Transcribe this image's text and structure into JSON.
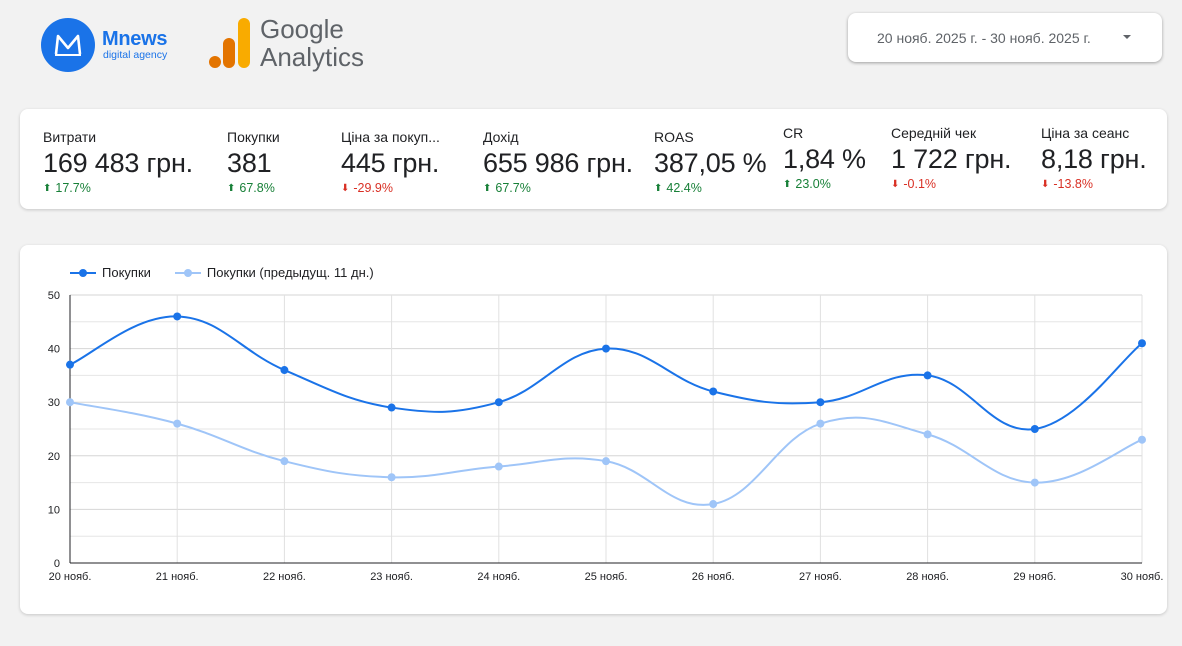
{
  "header": {
    "brand_name": "Mnews",
    "brand_sub": "digital agency",
    "ga_line1": "Google",
    "ga_line2": "Analytics",
    "date_range": "20 нояб. 2025 г. - 30 нояб. 2025 г."
  },
  "kpis": [
    {
      "label": "Витрати",
      "value": "169 483 грн.",
      "delta": "17.7%",
      "dir": "up"
    },
    {
      "label": "Покупки",
      "value": "381",
      "delta": "67.8%",
      "dir": "up"
    },
    {
      "label": "Ціна за покуп...",
      "value": "445 грн.",
      "delta": "-29.9%",
      "dir": "down"
    },
    {
      "label": "Дохід",
      "value": "655 986 грн.",
      "delta": "67.7%",
      "dir": "up"
    },
    {
      "label": "ROAS",
      "value": "387,05 %",
      "delta": "42.4%",
      "dir": "up"
    },
    {
      "label": "CR",
      "value": "1,84 %",
      "delta": "23.0%",
      "dir": "up"
    },
    {
      "label": "Середній чек",
      "value": "1 722 грн.",
      "delta": "-0.1%",
      "dir": "down"
    },
    {
      "label": "Ціна за сеанс",
      "value": "8,18 грн.",
      "delta": "-13.8%",
      "dir": "down"
    }
  ],
  "colors": {
    "accent": "#1a73e8",
    "series1": "#1a73e8",
    "series2": "#9fc5f8",
    "up": "#188038",
    "down": "#d93025"
  },
  "chart_data": {
    "type": "line",
    "categories": [
      "20 нояб.",
      "21 нояб.",
      "22 нояб.",
      "23 нояб.",
      "24 нояб.",
      "25 нояб.",
      "26 нояб.",
      "27 нояб.",
      "28 нояб.",
      "29 нояб.",
      "30 нояб."
    ],
    "series": [
      {
        "name": "Покупки",
        "values": [
          37,
          46,
          36,
          29,
          30,
          40,
          32,
          30,
          35,
          25,
          41
        ]
      },
      {
        "name": "Покупки (предыдущ. 11 дн.)",
        "values": [
          30,
          26,
          19,
          16,
          18,
          19,
          11,
          26,
          24,
          15,
          23
        ]
      }
    ],
    "ylim": [
      0,
      50
    ],
    "yticks": [
      "0",
      "10",
      "20",
      "30",
      "40",
      "50"
    ],
    "grid": true,
    "legend": "top-left",
    "title": "",
    "xlabel": "",
    "ylabel": ""
  }
}
